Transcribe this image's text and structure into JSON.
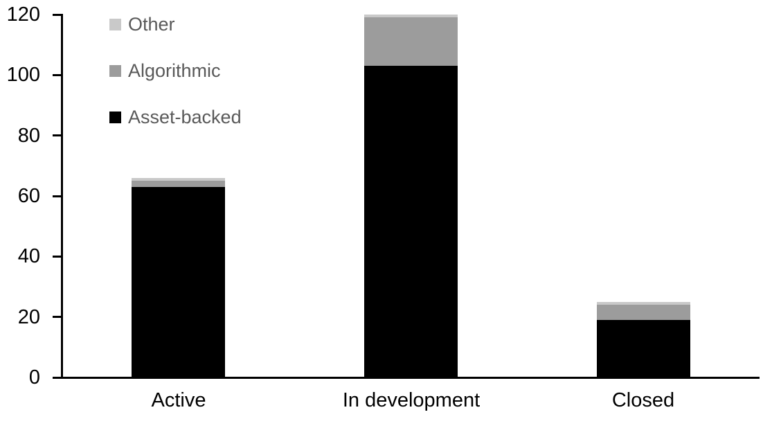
{
  "chart_data": {
    "type": "bar",
    "stacked": true,
    "title": "",
    "xlabel": "",
    "ylabel": "",
    "categories": [
      "Active",
      "In development",
      "Closed"
    ],
    "series": [
      {
        "name": "Asset-backed",
        "color": "#000000",
        "values": [
          63,
          103,
          19
        ]
      },
      {
        "name": "Algorithmic",
        "color": "#9c9c9c",
        "values": [
          2,
          16,
          5
        ]
      },
      {
        "name": "Other",
        "color": "#c9c9c9",
        "values": [
          1,
          1,
          1
        ]
      }
    ],
    "totals": [
      66,
      120,
      25
    ],
    "ylim": [
      0,
      120
    ],
    "y_ticks": [
      0,
      20,
      40,
      60,
      80,
      100,
      120
    ],
    "grid": false,
    "legend_position": "top-left",
    "axis_color": "#000000",
    "legend_text_color": "#595959"
  },
  "legend": {
    "items": [
      {
        "label": "Other",
        "color": "#c9c9c9"
      },
      {
        "label": "Algorithmic",
        "color": "#9c9c9c"
      },
      {
        "label": "Asset-backed",
        "color": "#000000"
      }
    ]
  }
}
